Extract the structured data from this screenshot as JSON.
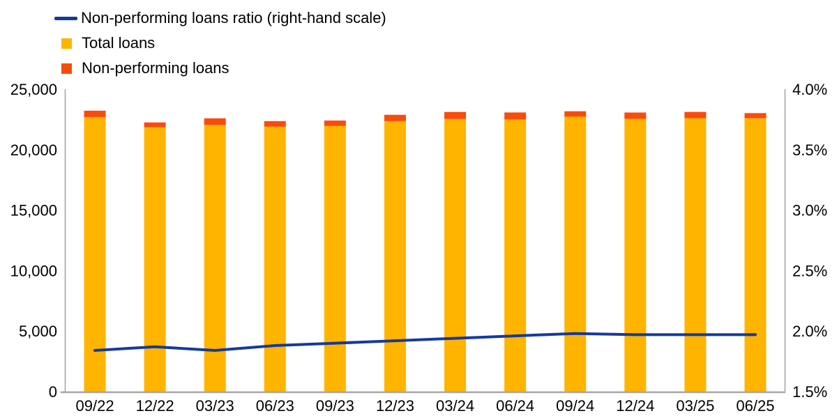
{
  "legend": {
    "items": [
      {
        "id": "ratio",
        "label": "Non-performing loans ratio (right-hand scale)",
        "swatch": "line",
        "color": "#16399E"
      },
      {
        "id": "total-loans",
        "label": "Total loans",
        "swatch": "square",
        "color": "#FFB400"
      },
      {
        "id": "non-performing-loans",
        "label": "Non-performing loans",
        "swatch": "square",
        "color": "#F94B0C"
      }
    ]
  },
  "chart_data": {
    "type": "combo",
    "subtype": "stacked-bar-with-line",
    "categories": [
      "09/22",
      "12/22",
      "03/23",
      "06/23",
      "09/23",
      "12/23",
      "03/24",
      "06/24",
      "09/24",
      "12/24",
      "03/25",
      "06/25"
    ],
    "series": [
      {
        "name": "Total loans",
        "type": "bar",
        "stack": "loans",
        "axis": "left",
        "color": "#FFB400",
        "values": [
          22700,
          21850,
          22050,
          21900,
          21960,
          22360,
          22540,
          22500,
          22730,
          22550,
          22600,
          22600
        ]
      },
      {
        "name": "Non-performing loans",
        "type": "bar",
        "stack": "loans",
        "axis": "left",
        "color": "#F94B0C",
        "values": [
          520,
          400,
          540,
          460,
          445,
          520,
          575,
          575,
          445,
          520,
          520,
          420
        ]
      },
      {
        "name": "Non-performing loans ratio (right-hand scale)",
        "type": "line",
        "axis": "right",
        "color": "#16399E",
        "values": [
          1.84,
          1.87,
          1.84,
          1.88,
          1.9,
          1.92,
          1.94,
          1.96,
          1.98,
          1.97,
          1.97,
          1.97
        ]
      }
    ],
    "left_axis": {
      "min": 0,
      "max": 25000,
      "tick_values": [
        0,
        5000,
        10000,
        15000,
        20000,
        25000
      ],
      "tick_labels": [
        "0",
        "5,000",
        "10,000",
        "15,000",
        "20,000",
        "25,000"
      ]
    },
    "right_axis": {
      "min": 1.5,
      "max": 4.0,
      "tick_values": [
        1.5,
        2.0,
        2.5,
        3.0,
        3.5,
        4.0
      ],
      "tick_labels": [
        "1.5%",
        "2.0%",
        "2.5%",
        "3.0%",
        "3.5%",
        "4.0%"
      ]
    },
    "grid": false,
    "legend_position": "top-left",
    "axis_line_color": "#A6A6A6",
    "text_color": "#000000"
  }
}
